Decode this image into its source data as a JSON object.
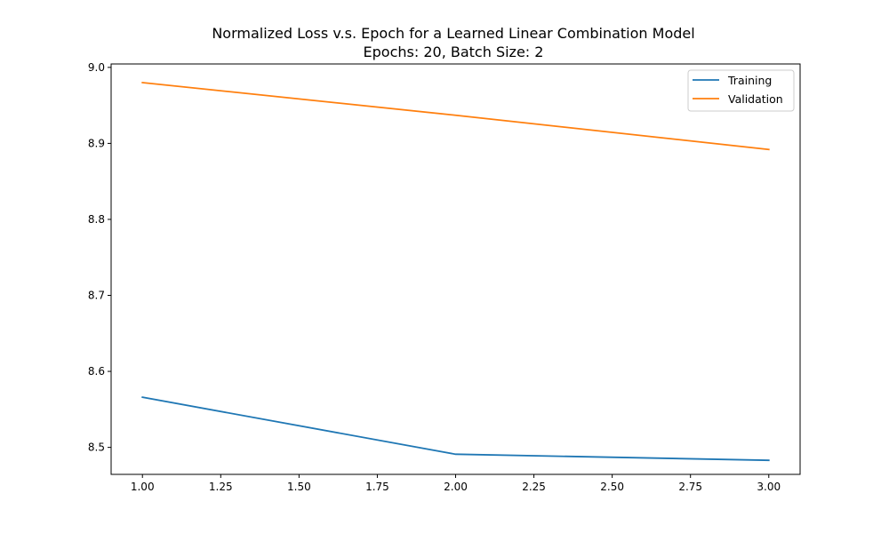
{
  "chart_data": {
    "type": "line",
    "title": "Normalized Loss v.s. Epoch for a Learned Linear Combination Model",
    "subtitle": "Epochs: 20, Batch Size: 2",
    "xlabel": "",
    "ylabel": "",
    "x": [
      1.0,
      2.0,
      3.0
    ],
    "xlim": [
      0.9,
      3.1
    ],
    "ylim": [
      8.4645,
      9.0045
    ],
    "x_ticks": [
      "1.00",
      "1.25",
      "1.50",
      "1.75",
      "2.00",
      "2.25",
      "2.50",
      "2.75",
      "3.00"
    ],
    "y_ticks": [
      "8.5",
      "8.6",
      "8.7",
      "8.8",
      "8.9",
      "9.0"
    ],
    "grid": false,
    "legend_position": "top-right",
    "series": [
      {
        "name": "Training",
        "color": "#1f77b4",
        "values": [
          8.566,
          8.491,
          8.483
        ]
      },
      {
        "name": "Validation",
        "color": "#ff7f0e",
        "values": [
          8.98,
          8.937,
          8.892
        ]
      }
    ]
  }
}
